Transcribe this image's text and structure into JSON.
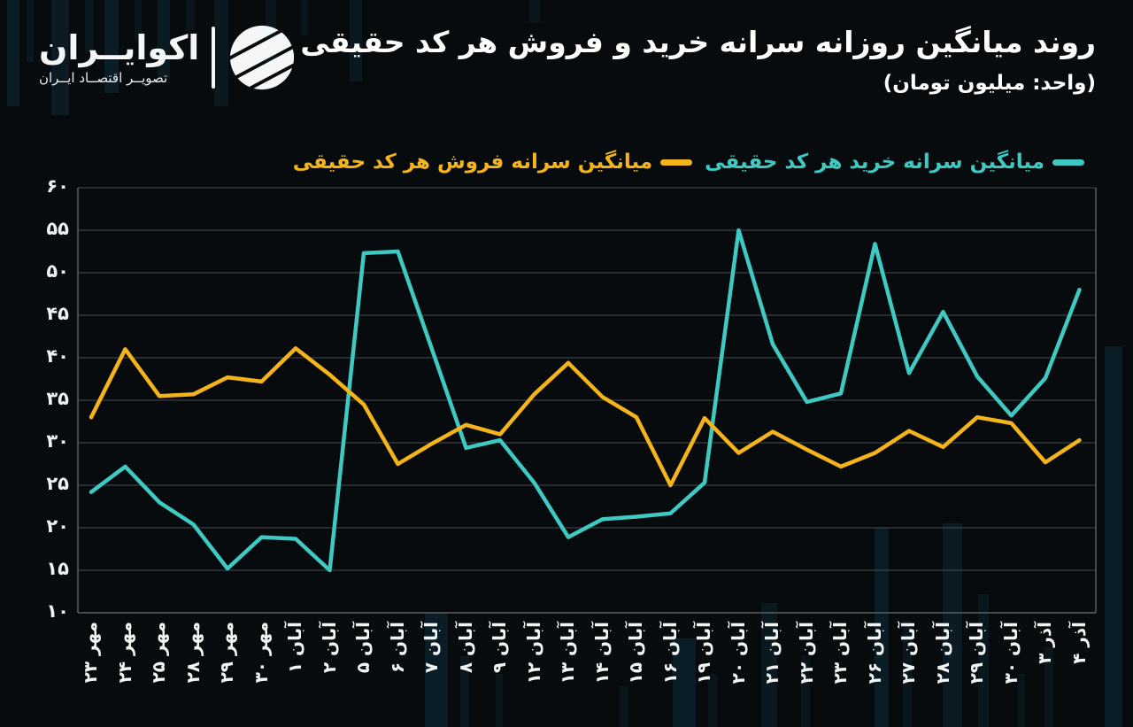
{
  "brand": {
    "name": "اکوایــران",
    "tagline": "تصویــر اقتصــاد ایــران"
  },
  "header": {
    "title": "روند میانگین روزانه سرانه خرید و فروش هر کد حقیقی",
    "subtitle": "(واحد: میلیون تومان)"
  },
  "chart_data": {
    "type": "line",
    "title": "روند میانگین روزانه سرانه خرید و فروش هر کد حقیقی",
    "unit_note": "(واحد: میلیون تومان)",
    "legend_position": "top",
    "grid": true,
    "background": "#070b0d",
    "categories": [
      "مهر ۲۳",
      "مهر ۲۴",
      "مهر ۲۵",
      "مهر ۲۸",
      "مهر ۲۹",
      "مهر ۳۰",
      "آبان ۱",
      "آبان ۲",
      "آبان ۵",
      "آبان ۶",
      "آبان ۷",
      "آبان ۸",
      "آبان ۹",
      "آبان ۱۲",
      "آبان ۱۳",
      "آبان ۱۴",
      "آبان ۱۵",
      "آبان ۱۶",
      "آبان ۱۹",
      "آبان ۲۰",
      "آبان ۲۱",
      "آبان ۲۲",
      "آبان ۲۳",
      "آبان ۲۶",
      "آبان ۲۷",
      "آبان ۲۸",
      "آبان ۲۹",
      "آبان ۳۰",
      "آذر ۳",
      "آذر ۴"
    ],
    "series": [
      {
        "name": "میانگین سرانه خرید هر کد حقیقی",
        "color": "#3EC9C2",
        "values": [
          24.2,
          27.2,
          23.0,
          20.4,
          15.2,
          18.9,
          18.7,
          15.0,
          52.3,
          52.5,
          41.0,
          29.4,
          30.3,
          25.3,
          18.9,
          21.0,
          21.3,
          21.7,
          25.3,
          55.0,
          41.6,
          34.8,
          35.8,
          53.4,
          38.2,
          45.4,
          37.8,
          33.2,
          37.6,
          48.0
        ]
      },
      {
        "name": "میانگین سرانه فروش هر کد حقیقی",
        "color": "#F4B41A",
        "values": [
          33.0,
          41.0,
          35.5,
          35.7,
          37.7,
          37.2,
          41.1,
          38.0,
          34.5,
          27.5,
          29.9,
          32.1,
          31.0,
          35.7,
          39.4,
          35.4,
          33.0,
          25.0,
          32.9,
          28.8,
          31.3,
          29.2,
          27.2,
          28.8,
          31.4,
          29.5,
          33.0,
          32.3,
          27.7,
          30.3
        ]
      }
    ],
    "y_axis": {
      "min": 10,
      "max": 60,
      "step": 5,
      "tick_labels": [
        "۶۰",
        "۵۵",
        "۵۰",
        "۴۵",
        "۴۰",
        "۳۵",
        "۳۰",
        "۲۵",
        "۲۰",
        "۱۵",
        "۱۰"
      ]
    }
  }
}
